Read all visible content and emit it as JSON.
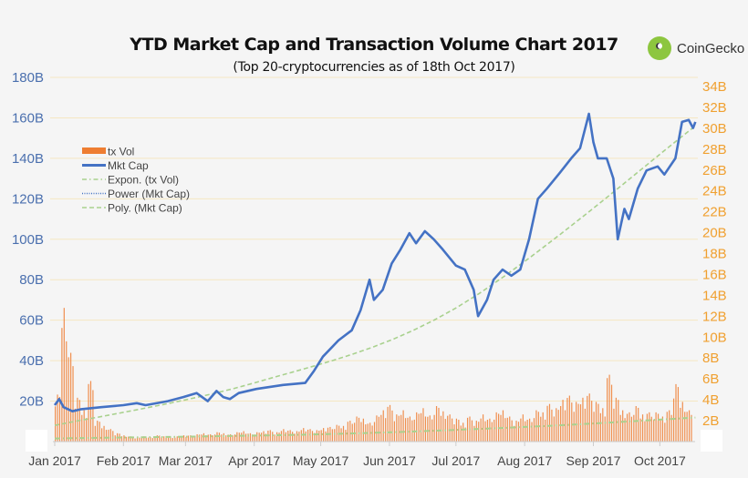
{
  "logo_text": "CoinGecko",
  "chart_data": {
    "type": "bar+line",
    "title": "YTD Market Cap and Transaction Volume Chart 2017",
    "subtitle": "(Top 20-cryptocurrencies as of 18th Oct 2017)",
    "left_axis": {
      "ticks": [
        "20B",
        "40B",
        "60B",
        "80B",
        "100B",
        "120B",
        "140B",
        "160B",
        "180B"
      ],
      "tick_values": [
        20,
        40,
        60,
        80,
        100,
        120,
        140,
        160,
        180
      ],
      "ylim": [
        0,
        180
      ],
      "color": "#4a6fae"
    },
    "right_axis": {
      "ticks": [
        "2B",
        "4B",
        "6B",
        "8B",
        "10B",
        "12B",
        "14B",
        "16B",
        "18B",
        "20B",
        "22B",
        "24B",
        "26B",
        "28B",
        "30B",
        "32B",
        "34B"
      ],
      "tick_values": [
        2,
        4,
        6,
        8,
        10,
        12,
        14,
        16,
        18,
        20,
        22,
        24,
        26,
        28,
        30,
        32,
        34
      ],
      "ylim": [
        0,
        35
      ],
      "color": "#f0a030"
    },
    "x_ticks": [
      {
        "label": "Jan 2017",
        "date": "2017-01-01"
      },
      {
        "label": "Feb 2017",
        "date": "2017-02-01"
      },
      {
        "label": "Mar 2017",
        "date": "2017-03-01"
      },
      {
        "label": "Apr 2017",
        "date": "2017-04-01"
      },
      {
        "label": "May 2017",
        "date": "2017-05-01"
      },
      {
        "label": "Jun 2017",
        "date": "2017-06-01"
      },
      {
        "label": "Jul 2017",
        "date": "2017-07-01"
      },
      {
        "label": "Aug 2017",
        "date": "2017-08-01"
      },
      {
        "label": "Sep 2017",
        "date": "2017-09-01"
      },
      {
        "label": "Oct 2017",
        "date": "2017-10-01"
      }
    ],
    "grid": true,
    "legend_position": "left",
    "legend": [
      {
        "name": "tx Vol",
        "style": "bar",
        "color": "#ee7d31"
      },
      {
        "name": "Mkt Cap",
        "style": "line",
        "color": "#4472c4"
      },
      {
        "name": "Expon. (tx Vol)",
        "style": "dash-dot",
        "color": "#a9d18e"
      },
      {
        "name": "Power (Mkt Cap)",
        "style": "dotted",
        "color": "#4472c4"
      },
      {
        "name": "Poly. (Mkt Cap)",
        "style": "dashed",
        "color": "#a9d18e"
      }
    ],
    "series": [
      {
        "name": "Mkt Cap",
        "axis": "left",
        "unit": "B",
        "points": [
          [
            "2017-01-01",
            18
          ],
          [
            "2017-01-03",
            21
          ],
          [
            "2017-01-05",
            17
          ],
          [
            "2017-01-09",
            15
          ],
          [
            "2017-01-13",
            16
          ],
          [
            "2017-01-22",
            17
          ],
          [
            "2017-02-01",
            18
          ],
          [
            "2017-02-07",
            19
          ],
          [
            "2017-02-11",
            18
          ],
          [
            "2017-02-21",
            20
          ],
          [
            "2017-02-28",
            22
          ],
          [
            "2017-03-06",
            24
          ],
          [
            "2017-03-11",
            20
          ],
          [
            "2017-03-15",
            25
          ],
          [
            "2017-03-18",
            22
          ],
          [
            "2017-03-21",
            21
          ],
          [
            "2017-03-25",
            24
          ],
          [
            "2017-04-02",
            26
          ],
          [
            "2017-04-14",
            28
          ],
          [
            "2017-04-24",
            29
          ],
          [
            "2017-04-28",
            35
          ],
          [
            "2017-05-02",
            42
          ],
          [
            "2017-05-09",
            50
          ],
          [
            "2017-05-15",
            55
          ],
          [
            "2017-05-19",
            65
          ],
          [
            "2017-05-23",
            80
          ],
          [
            "2017-05-25",
            70
          ],
          [
            "2017-05-29",
            75
          ],
          [
            "2017-06-02",
            88
          ],
          [
            "2017-06-06",
            95
          ],
          [
            "2017-06-10",
            103
          ],
          [
            "2017-06-13",
            98
          ],
          [
            "2017-06-17",
            104
          ],
          [
            "2017-06-21",
            100
          ],
          [
            "2017-06-25",
            95
          ],
          [
            "2017-07-01",
            87
          ],
          [
            "2017-07-05",
            85
          ],
          [
            "2017-07-09",
            75
          ],
          [
            "2017-07-11",
            62
          ],
          [
            "2017-07-15",
            70
          ],
          [
            "2017-07-18",
            80
          ],
          [
            "2017-07-22",
            85
          ],
          [
            "2017-07-26",
            82
          ],
          [
            "2017-07-30",
            85
          ],
          [
            "2017-08-03",
            100
          ],
          [
            "2017-08-07",
            120
          ],
          [
            "2017-08-11",
            125
          ],
          [
            "2017-08-17",
            133
          ],
          [
            "2017-08-22",
            140
          ],
          [
            "2017-08-26",
            145
          ],
          [
            "2017-08-30",
            162
          ],
          [
            "2017-09-01",
            148
          ],
          [
            "2017-09-03",
            140
          ],
          [
            "2017-09-07",
            140
          ],
          [
            "2017-09-10",
            130
          ],
          [
            "2017-09-12",
            100
          ],
          [
            "2017-09-15",
            115
          ],
          [
            "2017-09-17",
            110
          ],
          [
            "2017-09-21",
            125
          ],
          [
            "2017-09-25",
            134
          ],
          [
            "2017-09-30",
            136
          ],
          [
            "2017-10-03",
            132
          ],
          [
            "2017-10-08",
            140
          ],
          [
            "2017-10-11",
            158
          ],
          [
            "2017-10-14",
            159
          ],
          [
            "2017-10-16",
            155
          ],
          [
            "2017-10-17",
            158
          ]
        ]
      },
      {
        "name": "tx Vol",
        "axis": "right",
        "unit": "B",
        "start": "2017-01-01",
        "step_days": 3,
        "values": [
          4.5,
          12.8,
          8.5,
          4.2,
          3.0,
          5.8,
          2.0,
          1.5,
          1.2,
          0.8,
          0.6,
          0.5,
          0.4,
          0.5,
          0.4,
          0.6,
          0.5,
          0.4,
          0.5,
          0.6,
          0.6,
          0.7,
          0.8,
          0.7,
          0.9,
          0.8,
          0.7,
          0.9,
          1.0,
          0.8,
          0.9,
          1.0,
          1.1,
          0.9,
          1.2,
          1.1,
          1.0,
          1.3,
          1.2,
          1.1,
          1.3,
          1.4,
          1.6,
          1.5,
          2.0,
          2.4,
          2.2,
          1.8,
          2.5,
          3.0,
          3.5,
          2.6,
          3.0,
          2.4,
          2.8,
          3.2,
          2.5,
          3.4,
          2.9,
          2.6,
          2.2,
          1.8,
          2.4,
          2.0,
          2.6,
          2.2,
          2.8,
          3.0,
          2.4,
          2.0,
          2.6,
          2.2,
          3.0,
          2.8,
          3.6,
          3.2,
          4.0,
          4.4,
          3.8,
          4.2,
          4.6,
          3.8,
          3.2,
          6.4,
          4.2,
          3.0,
          2.8,
          3.4,
          2.6,
          2.8,
          2.8,
          2.4,
          3.0,
          5.5,
          3.8,
          3.0
        ]
      },
      {
        "name": "Poly. (Mkt Cap)",
        "axis": "left",
        "points": [
          [
            "2017-01-01",
            8
          ],
          [
            "2017-04-01",
            29
          ],
          [
            "2017-07-01",
            66
          ],
          [
            "2017-10-17",
            156
          ]
        ]
      },
      {
        "name": "Expon. (tx Vol)",
        "axis": "right",
        "points": [
          [
            "2017-01-01",
            0.3
          ],
          [
            "2017-05-01",
            0.7
          ],
          [
            "2017-08-01",
            1.4
          ],
          [
            "2017-10-17",
            2.3
          ]
        ]
      }
    ]
  }
}
